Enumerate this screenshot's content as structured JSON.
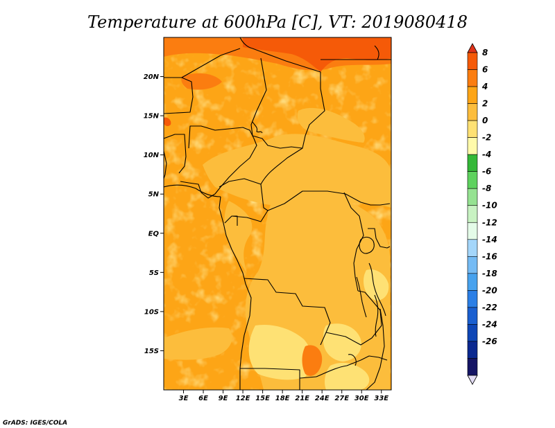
{
  "chart_data": {
    "type": "heatmap",
    "title": "Temperature at 600hPa [C], VT: 2019080418",
    "variable": "Temperature",
    "level": "600hPa",
    "units": "C",
    "valid_time": "2019080418",
    "lon_range": [
      0,
      34.5
    ],
    "lat_range": [
      -20,
      25
    ],
    "x_ticks": [
      {
        "value": 3,
        "label": "3E"
      },
      {
        "value": 6,
        "label": "6E"
      },
      {
        "value": 9,
        "label": "9E"
      },
      {
        "value": 12,
        "label": "12E"
      },
      {
        "value": 15,
        "label": "15E"
      },
      {
        "value": 18,
        "label": "18E"
      },
      {
        "value": 21,
        "label": "21E"
      },
      {
        "value": 24,
        "label": "24E"
      },
      {
        "value": 27,
        "label": "27E"
      },
      {
        "value": 30,
        "label": "30E"
      },
      {
        "value": 33,
        "label": "33E"
      }
    ],
    "y_ticks": [
      {
        "value": 20,
        "label": "20N"
      },
      {
        "value": 15,
        "label": "15N"
      },
      {
        "value": 10,
        "label": "10N"
      },
      {
        "value": 5,
        "label": "5N"
      },
      {
        "value": 0,
        "label": "EQ"
      },
      {
        "value": -5,
        "label": "5S"
      },
      {
        "value": -10,
        "label": "10S"
      },
      {
        "value": -15,
        "label": "15S"
      }
    ],
    "colorbar": {
      "labels": [
        "8",
        "6",
        "4",
        "2",
        "0",
        "-2",
        "-4",
        "-6",
        "-8",
        "-10",
        "-12",
        "-14",
        "-16",
        "-18",
        "-20",
        "-22",
        "-24",
        "-26"
      ],
      "colors": [
        "#e0331a",
        "#f55a08",
        "#fb7d10",
        "#fda516",
        "#fcbd3c",
        "#fee174",
        "#fffaaa",
        "#34b838",
        "#5ed25e",
        "#95e291",
        "#c8f2c2",
        "#e4fbe8",
        "#a4d6fa",
        "#75bbf4",
        "#47a2ee",
        "#2b7fe6",
        "#1a5fd0",
        "#0e46b6",
        "#0a2890",
        "#141464",
        "#e2dcf4"
      ]
    },
    "features": {
      "northeast_max": "4 to 6 C (red-orange) along the Libya / Egypt border",
      "interior": "0 to 4 C over central Africa",
      "coolest": "-2 to 0 C (pale yellow) over Angola and Zambia"
    }
  },
  "credit": "GrADS: IGES/COLA"
}
